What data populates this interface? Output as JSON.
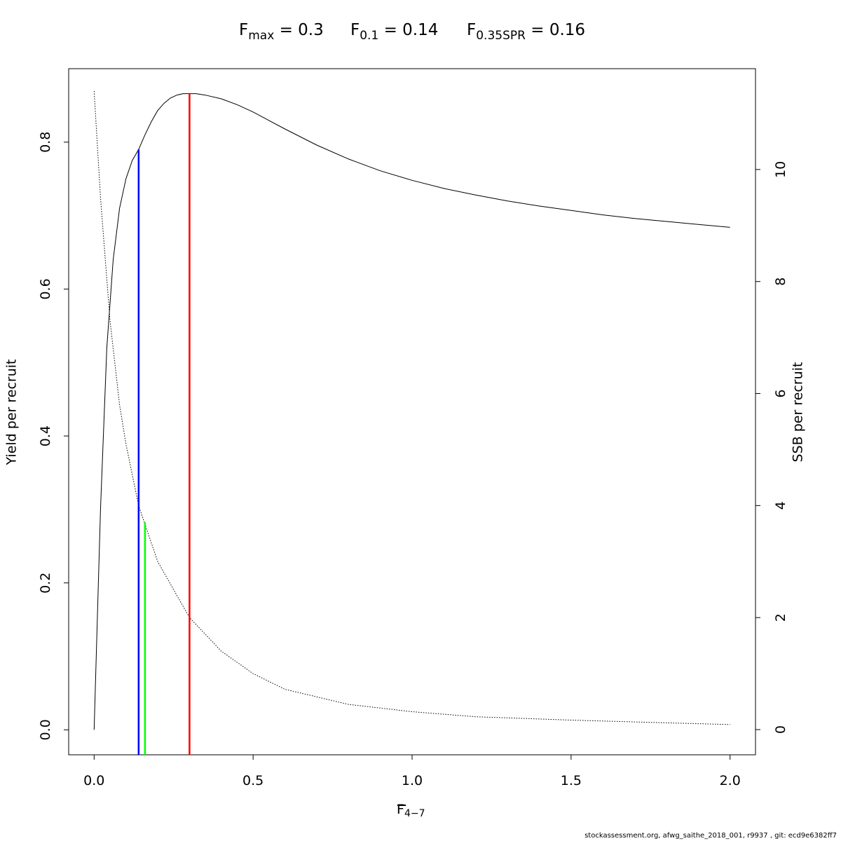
{
  "title": {
    "fmax": {
      "symbol": "F",
      "sub": "max",
      "rest": " = 0.3"
    },
    "f01": {
      "symbol": "F",
      "sub": "0.1",
      "rest": " = 0.14"
    },
    "fspr": {
      "symbol": "F",
      "sub": "0.35SPR",
      "rest": " = 0.16"
    }
  },
  "footer": "stockassessment.org, afwg_saithe_2018_001, r9937 , git: ecd9e6382ff7",
  "chart_data": {
    "type": "line",
    "xlabel": {
      "symbol": "F",
      "sub": "4−7"
    },
    "ylabel_left": "Yield per recruit",
    "ylabel_right": "SSB per recruit",
    "xlim": [
      -0.08,
      2.08
    ],
    "ylim_left": [
      -0.034,
      0.9
    ],
    "ylim_right": [
      -0.45,
      11.8
    ],
    "x_ticks": [
      "0.0",
      "0.5",
      "1.0",
      "1.5",
      "2.0"
    ],
    "x_tick_values": [
      0,
      0.5,
      1.0,
      1.5,
      2.0
    ],
    "left_ticks": [
      "0.0",
      "0.2",
      "0.4",
      "0.6",
      "0.8"
    ],
    "left_tick_values": [
      0,
      0.2,
      0.4,
      0.6,
      0.8
    ],
    "right_ticks": [
      "0",
      "2",
      "4",
      "6",
      "8",
      "10"
    ],
    "right_tick_values": [
      0,
      2,
      4,
      6,
      8,
      10
    ],
    "series": [
      {
        "name": "Yield per recruit",
        "axis": "left",
        "style": "solid",
        "color": "#000000",
        "x": [
          0,
          0.02,
          0.04,
          0.06,
          0.08,
          0.1,
          0.12,
          0.14,
          0.16,
          0.18,
          0.2,
          0.22,
          0.24,
          0.26,
          0.28,
          0.3,
          0.32,
          0.35,
          0.4,
          0.45,
          0.5,
          0.6,
          0.7,
          0.8,
          0.9,
          1.0,
          1.1,
          1.2,
          1.3,
          1.4,
          1.5,
          1.6,
          1.7,
          1.8,
          1.9,
          2.0
        ],
        "y": [
          0,
          0.3,
          0.52,
          0.64,
          0.71,
          0.75,
          0.775,
          0.79,
          0.81,
          0.828,
          0.843,
          0.853,
          0.86,
          0.864,
          0.866,
          0.866,
          0.866,
          0.864,
          0.859,
          0.851,
          0.841,
          0.818,
          0.796,
          0.777,
          0.761,
          0.748,
          0.737,
          0.728,
          0.72,
          0.713,
          0.707,
          0.701,
          0.696,
          0.692,
          0.688,
          0.684
        ]
      },
      {
        "name": "SSB per recruit",
        "axis": "right",
        "style": "dotted",
        "color": "#000000",
        "x": [
          0,
          0.02,
          0.05,
          0.08,
          0.1,
          0.14,
          0.2,
          0.3,
          0.4,
          0.5,
          0.6,
          0.8,
          1.0,
          1.2,
          1.5,
          1.8,
          2.0
        ],
        "y": [
          11.4,
          9.5,
          7.3,
          5.8,
          5.1,
          4.0,
          3.0,
          2.0,
          1.4,
          1.0,
          0.72,
          0.45,
          0.32,
          0.23,
          0.17,
          0.12,
          0.09
        ]
      }
    ],
    "reference_lines": [
      {
        "name": "F0.1",
        "x": 0.14,
        "y_top": 0.79,
        "axis": "left",
        "color": "#0000ff"
      },
      {
        "name": "F0.35SPR",
        "x": 0.16,
        "y_top": 3.7,
        "axis": "right",
        "color": "#00ff00"
      },
      {
        "name": "Fmax",
        "x": 0.3,
        "y_top": 0.866,
        "axis": "left",
        "color": "#ff0000"
      }
    ],
    "grid": false,
    "legend": "none"
  }
}
